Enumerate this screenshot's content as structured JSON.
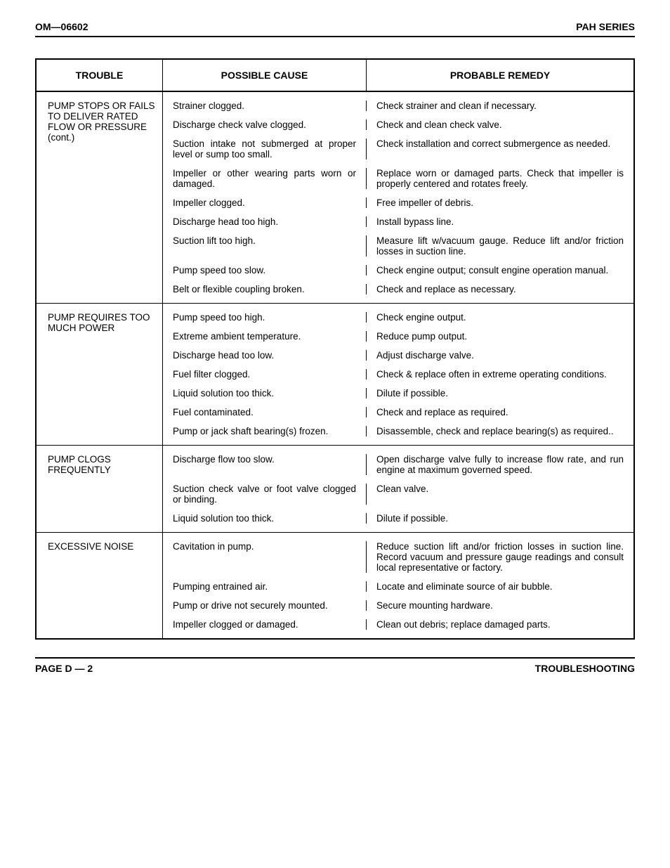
{
  "header": {
    "left": "OM—06602",
    "right": "PAH SERIES"
  },
  "table": {
    "columns": {
      "trouble": "TROUBLE",
      "cause": "POSSIBLE CAUSE",
      "remedy": "PROBABLE REMEDY"
    },
    "sections": [
      {
        "trouble": "PUMP STOPS OR FAILS TO DELIVER RATED FLOW OR PRESSURE (cont.)",
        "rows": [
          {
            "cause": "Strainer clogged.",
            "remedy": "Check strainer and clean if neces­sary."
          },
          {
            "cause": "Discharge check valve clogged.",
            "remedy": "Check and clean check valve."
          },
          {
            "cause": "Suction intake not submerged at proper level or sump too small.",
            "remedy": "Check installation and correct submergence as needed."
          },
          {
            "cause": "Impeller or other wearing parts worn or damaged.",
            "remedy": "Replace worn or damaged parts. Check that impeller is properly centered and rotates freely."
          },
          {
            "cause": "Impeller clogged.",
            "remedy": "Free impeller of debris."
          },
          {
            "cause": "Discharge head too high.",
            "remedy": "Install bypass line."
          },
          {
            "cause": "Suction lift too high.",
            "remedy": "Measure lift w/vacuum gauge. Re­duce lift and/or friction losses in suction line."
          },
          {
            "cause": "Pump speed too slow.",
            "remedy": "Check engine output; consult en­gine operation manual."
          },
          {
            "cause": "Belt or flexible coupling broken.",
            "remedy": "Check and replace as necessary."
          }
        ]
      },
      {
        "trouble": "PUMP REQUIRES TOO MUCH POWER",
        "rows": [
          {
            "cause": "Pump speed too high.",
            "remedy": "Check engine output."
          },
          {
            "cause": "Extreme ambient temperature.",
            "remedy": "Reduce pump output."
          },
          {
            "cause": "Discharge head too low.",
            "remedy": "Adjust discharge valve."
          },
          {
            "cause": "Fuel filter clogged.",
            "remedy": "Check & replace often in extreme operating conditions."
          },
          {
            "cause": "Liquid solution too thick.",
            "remedy": "Dilute if possible."
          },
          {
            "cause": "Fuel contaminated.",
            "remedy": "Check and replace as required."
          },
          {
            "cause": "Pump or jack shaft bearing(s) frozen.",
            "remedy": "Disassemble, check and replace bearing(s) as required.."
          }
        ]
      },
      {
        "trouble": "PUMP CLOGS FREQUENTLY",
        "rows": [
          {
            "cause": "Discharge flow too slow.",
            "remedy": "Open discharge valve fully to in­crease flow rate, and run engine at maximum governed speed."
          },
          {
            "cause": "Suction check valve or foot valve clogged or binding.",
            "remedy": "Clean valve."
          },
          {
            "cause": "Liquid solution too thick.",
            "remedy": "Dilute if possible."
          }
        ]
      },
      {
        "trouble": "EXCESSIVE NOISE",
        "rows": [
          {
            "cause": "Cavitation in pump.",
            "remedy": "Reduce suction lift and/or friction losses in suction line. Record vac­uum and pressure gauge readings and consult local representative or factory."
          },
          {
            "cause": "Pumping entrained air.",
            "remedy": "Locate and eliminate source of air bubble."
          },
          {
            "cause": "Pump or drive not securely mounted.",
            "remedy": "Secure mounting hardware."
          },
          {
            "cause": "Impeller clogged or damaged.",
            "remedy": "Clean out debris; replace damaged parts."
          }
        ]
      }
    ]
  },
  "footer": {
    "left": "PAGE D — 2",
    "right": "TROUBLESHOOTING"
  }
}
